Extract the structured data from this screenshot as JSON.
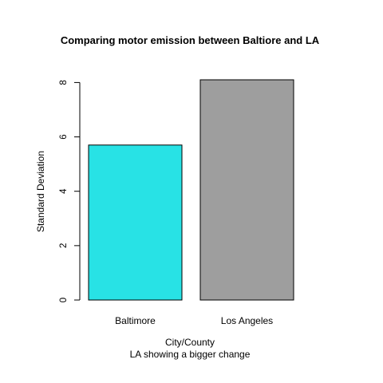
{
  "chart_data": {
    "type": "bar",
    "title": "Comparing motor emission between Baltiore and LA",
    "xlabel": "City/County",
    "subtitle": "LA showing a bigger change",
    "ylabel": "Standard Deviation",
    "categories": [
      "Baltimore",
      "Los Angeles"
    ],
    "values": [
      5.7,
      8.1
    ],
    "colors": [
      "#28e2e5",
      "#9e9e9e"
    ],
    "ylim": [
      0,
      8.1
    ],
    "yticks": [
      0,
      2,
      4,
      6,
      8
    ],
    "grid": false,
    "legend": "none"
  }
}
